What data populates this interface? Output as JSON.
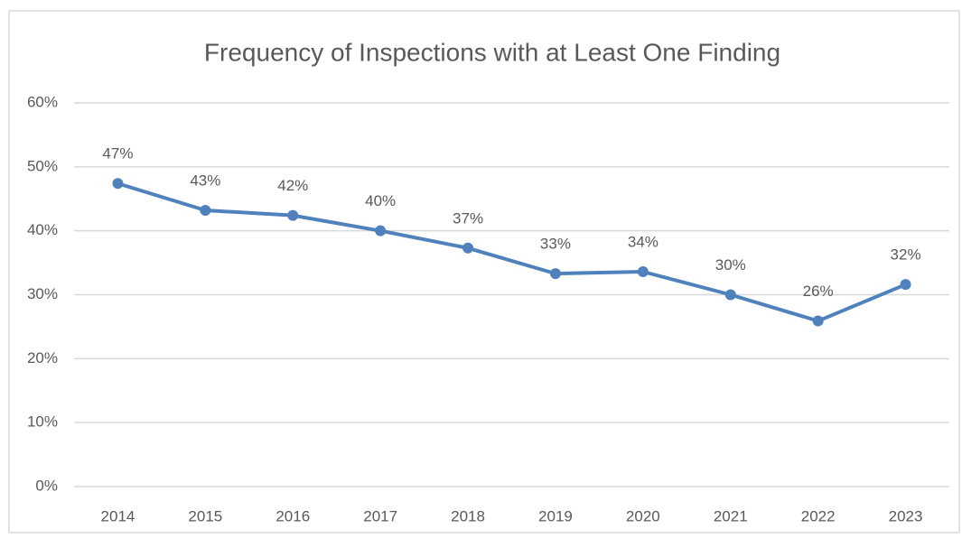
{
  "chart_data": {
    "type": "line",
    "title": "Frequency of Inspections with at Least One Finding",
    "categories": [
      "2014",
      "2015",
      "2016",
      "2017",
      "2018",
      "2019",
      "2020",
      "2021",
      "2022",
      "2023"
    ],
    "series": [
      {
        "color": "#4f81bd",
        "values": [
          47.4,
          43.2,
          42.4,
          40,
          37.3,
          33.3,
          33.6,
          30,
          25.9,
          31.6
        ],
        "value_labels": [
          "47%",
          "43%",
          "42%",
          "40%",
          "37%",
          "33%",
          "34%",
          "30%",
          "26%",
          "32%"
        ]
      }
    ],
    "ylim": [
      0,
      60
    ],
    "yticks": [
      {
        "value": 0,
        "label": "0%"
      },
      {
        "value": 10,
        "label": "10%"
      },
      {
        "value": 20,
        "label": "20%"
      },
      {
        "value": 30,
        "label": "30%"
      },
      {
        "value": 40,
        "label": "40%"
      },
      {
        "value": 50,
        "label": "50%"
      },
      {
        "value": 60,
        "label": "60%"
      }
    ],
    "grid": true
  }
}
